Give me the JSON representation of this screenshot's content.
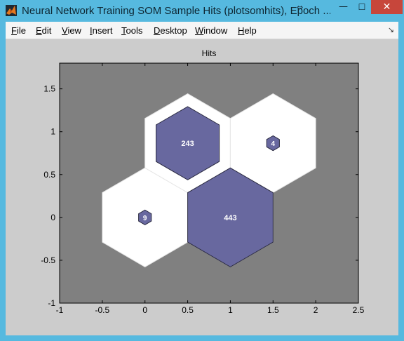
{
  "window": {
    "title": "Neural Network Training SOM Sample Hits (plotsomhits), Epoch ...",
    "controls": {
      "minimize": "—",
      "maximize": "☐",
      "close": "✕"
    }
  },
  "menu": {
    "items": [
      {
        "label": "File",
        "key": "F"
      },
      {
        "label": "Edit",
        "key": "E"
      },
      {
        "label": "View",
        "key": "V"
      },
      {
        "label": "Insert",
        "key": "I"
      },
      {
        "label": "Tools",
        "key": "T"
      },
      {
        "label": "Desktop",
        "key": "D"
      },
      {
        "label": "Window",
        "key": "W"
      },
      {
        "label": "Help",
        "key": "H"
      }
    ],
    "overflow_icon": "dock-arrow-icon"
  },
  "colors": {
    "axes_bg": "#808080",
    "figure_bg": "#cccccc",
    "hex_empty": "#ffffff",
    "hit_fill": "#68689f",
    "title_bar": "#56b9df",
    "close_button": "#c7463b"
  },
  "chart_data": {
    "type": "hexagonal-hits",
    "title": "Hits",
    "xlabel": "",
    "ylabel": "",
    "xlim": [
      -1,
      2.5
    ],
    "ylim": [
      -1,
      1.8
    ],
    "xticks": [
      -1,
      -0.5,
      0,
      0.5,
      1,
      1.5,
      2,
      2.5
    ],
    "yticks": [
      -1,
      -0.5,
      0,
      0.5,
      1,
      1.5
    ],
    "neurons": [
      {
        "x": 0,
        "y": 0,
        "hits": 9,
        "label": "9"
      },
      {
        "x": 1,
        "y": 0,
        "hits": 443,
        "label": "443"
      },
      {
        "x": 0.5,
        "y": 0.866,
        "hits": 243,
        "label": "243"
      },
      {
        "x": 1.5,
        "y": 0.866,
        "hits": 4,
        "label": "4"
      }
    ],
    "max_hits": 443
  }
}
